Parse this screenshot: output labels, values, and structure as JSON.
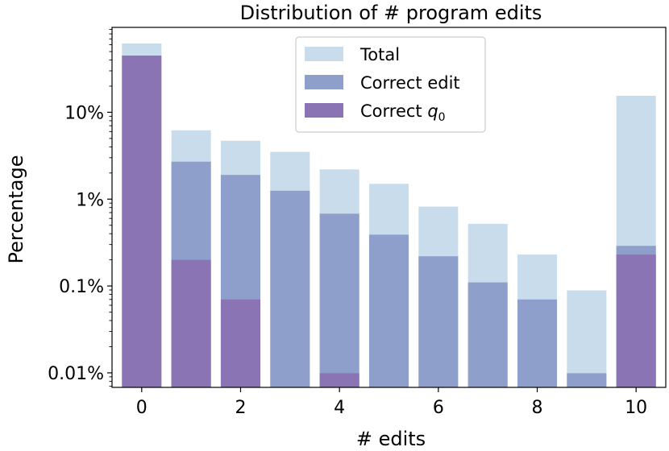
{
  "colors": {
    "total": "#c9dcec",
    "correct_edit": "#8f9fcc",
    "correct_q0": "#8b74b4",
    "axis": "#000000",
    "legend_border": "#cccccc"
  },
  "chart_data": {
    "type": "bar",
    "title": "Distribution of # program edits",
    "xlabel": "# edits",
    "ylabel": "Percentage",
    "yscale": "log",
    "ylim": [
      0.0068,
      95
    ],
    "xlim": [
      -0.6,
      10.6
    ],
    "xticks": [
      0,
      2,
      4,
      6,
      8,
      10
    ],
    "xtick_labels": [
      "0",
      "2",
      "4",
      "6",
      "8",
      "10"
    ],
    "yticks": [
      0.01,
      0.1,
      1,
      10
    ],
    "ytick_labels": [
      "0.01%",
      "0.1%",
      "1%",
      "10%"
    ],
    "categories": [
      0,
      1,
      2,
      3,
      4,
      5,
      6,
      7,
      8,
      9,
      10
    ],
    "series": [
      {
        "name": "Total",
        "color_key": "total",
        "values": [
          62,
          6.2,
          4.7,
          3.5,
          2.2,
          1.5,
          0.82,
          0.52,
          0.23,
          0.089,
          15.5
        ]
      },
      {
        "name": "Correct edit",
        "color_key": "correct_edit",
        "values": [
          null,
          2.7,
          1.9,
          1.25,
          0.68,
          0.39,
          0.22,
          0.11,
          0.07,
          0.0099,
          0.29
        ]
      },
      {
        "name": "Correct q0",
        "legend_main": "Correct ",
        "legend_var": "q",
        "legend_sub": "0",
        "color_key": "correct_q0",
        "values": [
          45,
          0.2,
          0.07,
          null,
          0.0099,
          null,
          null,
          null,
          null,
          null,
          0.23
        ]
      }
    ],
    "legend_position": "upper-center",
    "grid": false
  }
}
